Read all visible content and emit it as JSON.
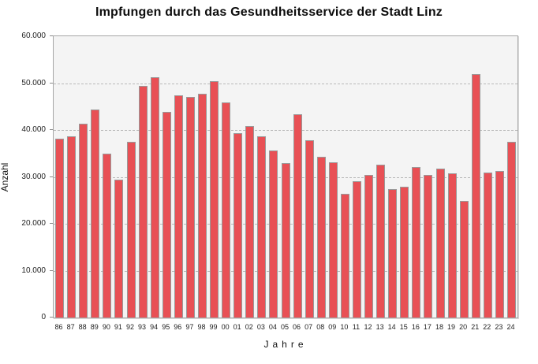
{
  "chart_data": {
    "type": "bar",
    "title": "Impfungen durch das Gesundheitsservice der Stadt Linz",
    "xlabel": "Jahre",
    "ylabel": "Anzahl",
    "ylim": [
      0,
      60000
    ],
    "grid": "dashed horizontal lines at 10.000 steps",
    "legend": "none",
    "categories": [
      "86",
      "87",
      "88",
      "89",
      "90",
      "91",
      "92",
      "93",
      "94",
      "95",
      "96",
      "97",
      "98",
      "99",
      "00",
      "01",
      "02",
      "03",
      "04",
      "05",
      "06",
      "07",
      "08",
      "09",
      "10",
      "11",
      "12",
      "13",
      "14",
      "15",
      "16",
      "17",
      "18",
      "19",
      "20",
      "21",
      "22",
      "23",
      "24"
    ],
    "values": [
      38100,
      38600,
      41300,
      44400,
      35000,
      29400,
      37500,
      49400,
      51200,
      43900,
      47400,
      47000,
      47800,
      50500,
      45900,
      39400,
      40900,
      38600,
      35700,
      32900,
      43400,
      37800,
      34300,
      33100,
      26400,
      29000,
      30400,
      32600,
      27400,
      27900,
      32100,
      30500,
      31800,
      30800,
      24800,
      51900,
      30900,
      31200,
      37400
    ],
    "yticks": [
      {
        "value": 0,
        "label": "0"
      },
      {
        "value": 10000,
        "label": "10.000"
      },
      {
        "value": 20000,
        "label": "20.000"
      },
      {
        "value": 30000,
        "label": "30.000"
      },
      {
        "value": 40000,
        "label": "40.000"
      },
      {
        "value": 50000,
        "label": "50.000"
      },
      {
        "value": 60000,
        "label": "60.000"
      }
    ],
    "gridline_values": [
      10000,
      20000,
      30000,
      40000,
      50000
    ],
    "colors": {
      "bar_fill": "#e85055",
      "bar_border": "#9a9a9a",
      "plot_background": "#f4f4f4",
      "gridline": "#b9b9b9",
      "text": "#111111"
    }
  }
}
